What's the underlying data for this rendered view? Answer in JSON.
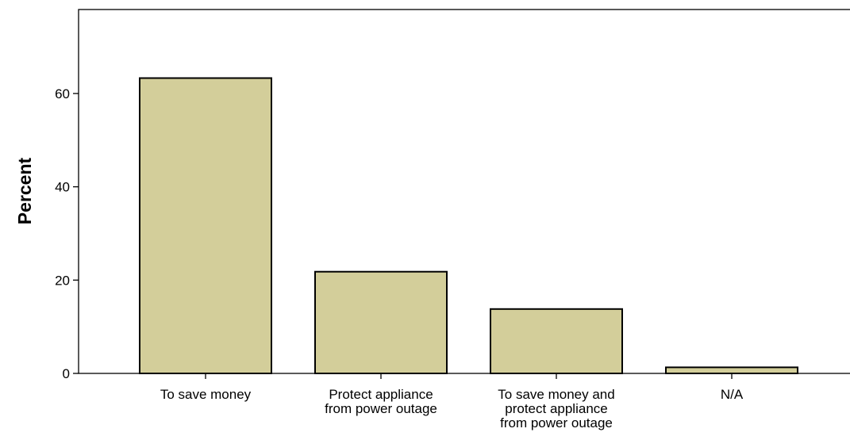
{
  "chart_data": {
    "type": "bar",
    "categories": [
      [
        "To save money"
      ],
      [
        "Protect appliance",
        "from power outage"
      ],
      [
        "To save money and",
        "protect appliance",
        "from power outage"
      ],
      [
        "N/A"
      ]
    ],
    "values": [
      63.3,
      21.8,
      13.8,
      1.3
    ],
    "ylabel": "Percent",
    "xlabel": "",
    "ylim": [
      0,
      78
    ],
    "yticks": [
      0,
      20,
      40,
      60
    ],
    "grid": false,
    "bar_color": "#d3ce9a",
    "bar_edge_color": "#000000"
  }
}
